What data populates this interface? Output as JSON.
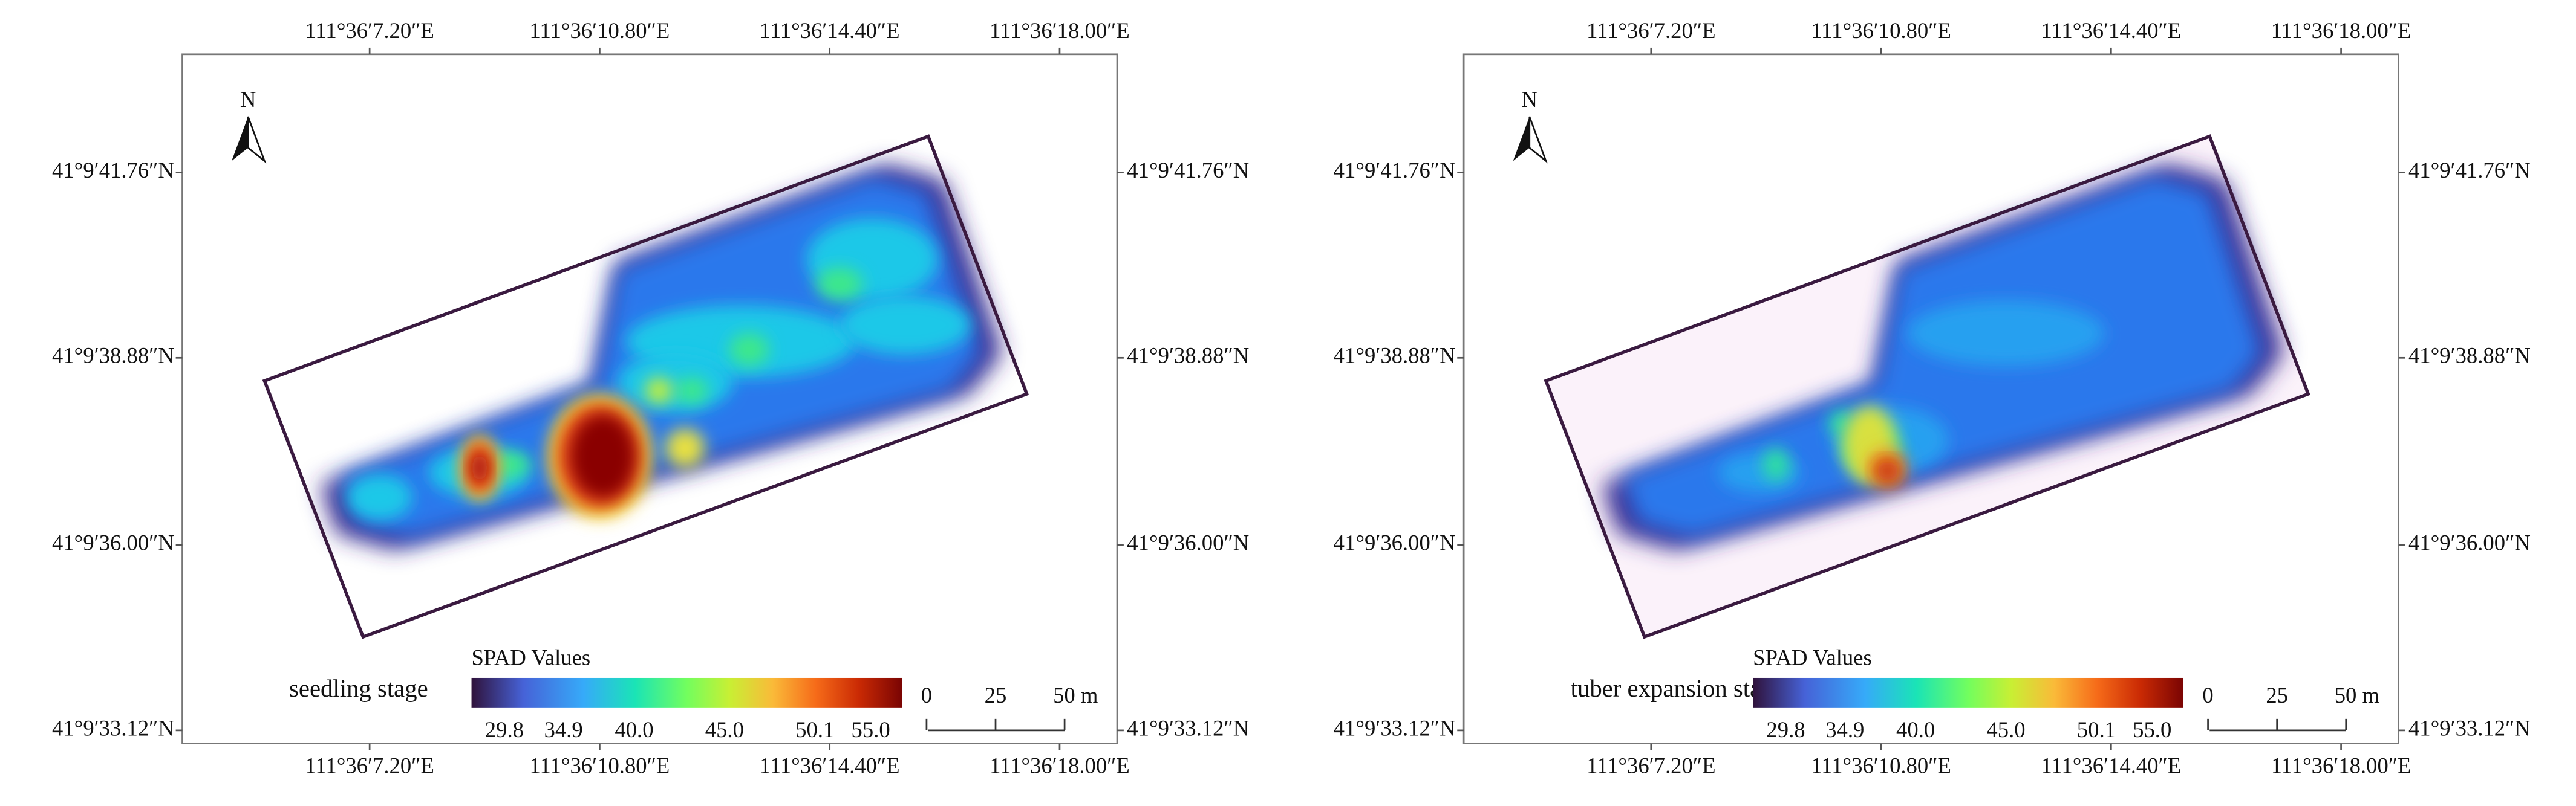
{
  "panels": [
    {
      "top_axis_labels": [
        "111°36′7.20″E",
        "111°36′10.80″E",
        "111°36′14.40″E",
        "111°36′18.00″E"
      ],
      "bottom_axis_labels": [
        "111°36′7.20″E",
        "111°36′10.80″E",
        "111°36′14.40″E",
        "111°36′18.00″E"
      ],
      "left_axis_labels": [
        "41°9′41.76″N",
        "41°9′38.88″N",
        "41°9′36.00″N",
        "41°9′33.12″N"
      ],
      "right_axis_labels": [
        "41°9′41.76″N",
        "41°9′38.88″N",
        "41°9′36.00″N",
        "41°9′33.12″N"
      ],
      "north": "N",
      "stage": "seedling stage",
      "legend": {
        "title": "SPAD Values",
        "ticks": [
          "29.8",
          "34.9",
          "40.0",
          "45.0",
          "50.1",
          "55.0"
        ]
      },
      "scale_bar": [
        "0",
        "25",
        "50 m"
      ]
    },
    {
      "top_axis_labels": [
        "111°36′7.20″E",
        "111°36′10.80″E",
        "111°36′14.40″E",
        "111°36′18.00″E"
      ],
      "bottom_axis_labels": [
        "111°36′7.20″E",
        "111°36′10.80″E",
        "111°36′14.40″E",
        "111°36′18.00″E"
      ],
      "left_axis_labels": [
        "41°9′41.76″N",
        "41°9′38.88″N",
        "41°9′36.00″N",
        "41°9′33.12″N"
      ],
      "right_axis_labels": [
        "41°9′41.76″N",
        "41°9′38.88″N",
        "41°9′36.00″N",
        "41°9′33.12″N"
      ],
      "north": "N",
      "stage": "tuber expansion stage",
      "legend": {
        "title": "SPAD Values",
        "ticks": [
          "29.8",
          "34.9",
          "40.0",
          "45.0",
          "50.1",
          "55.0"
        ]
      },
      "scale_bar": [
        "0",
        "25",
        "50 m"
      ]
    }
  ]
}
